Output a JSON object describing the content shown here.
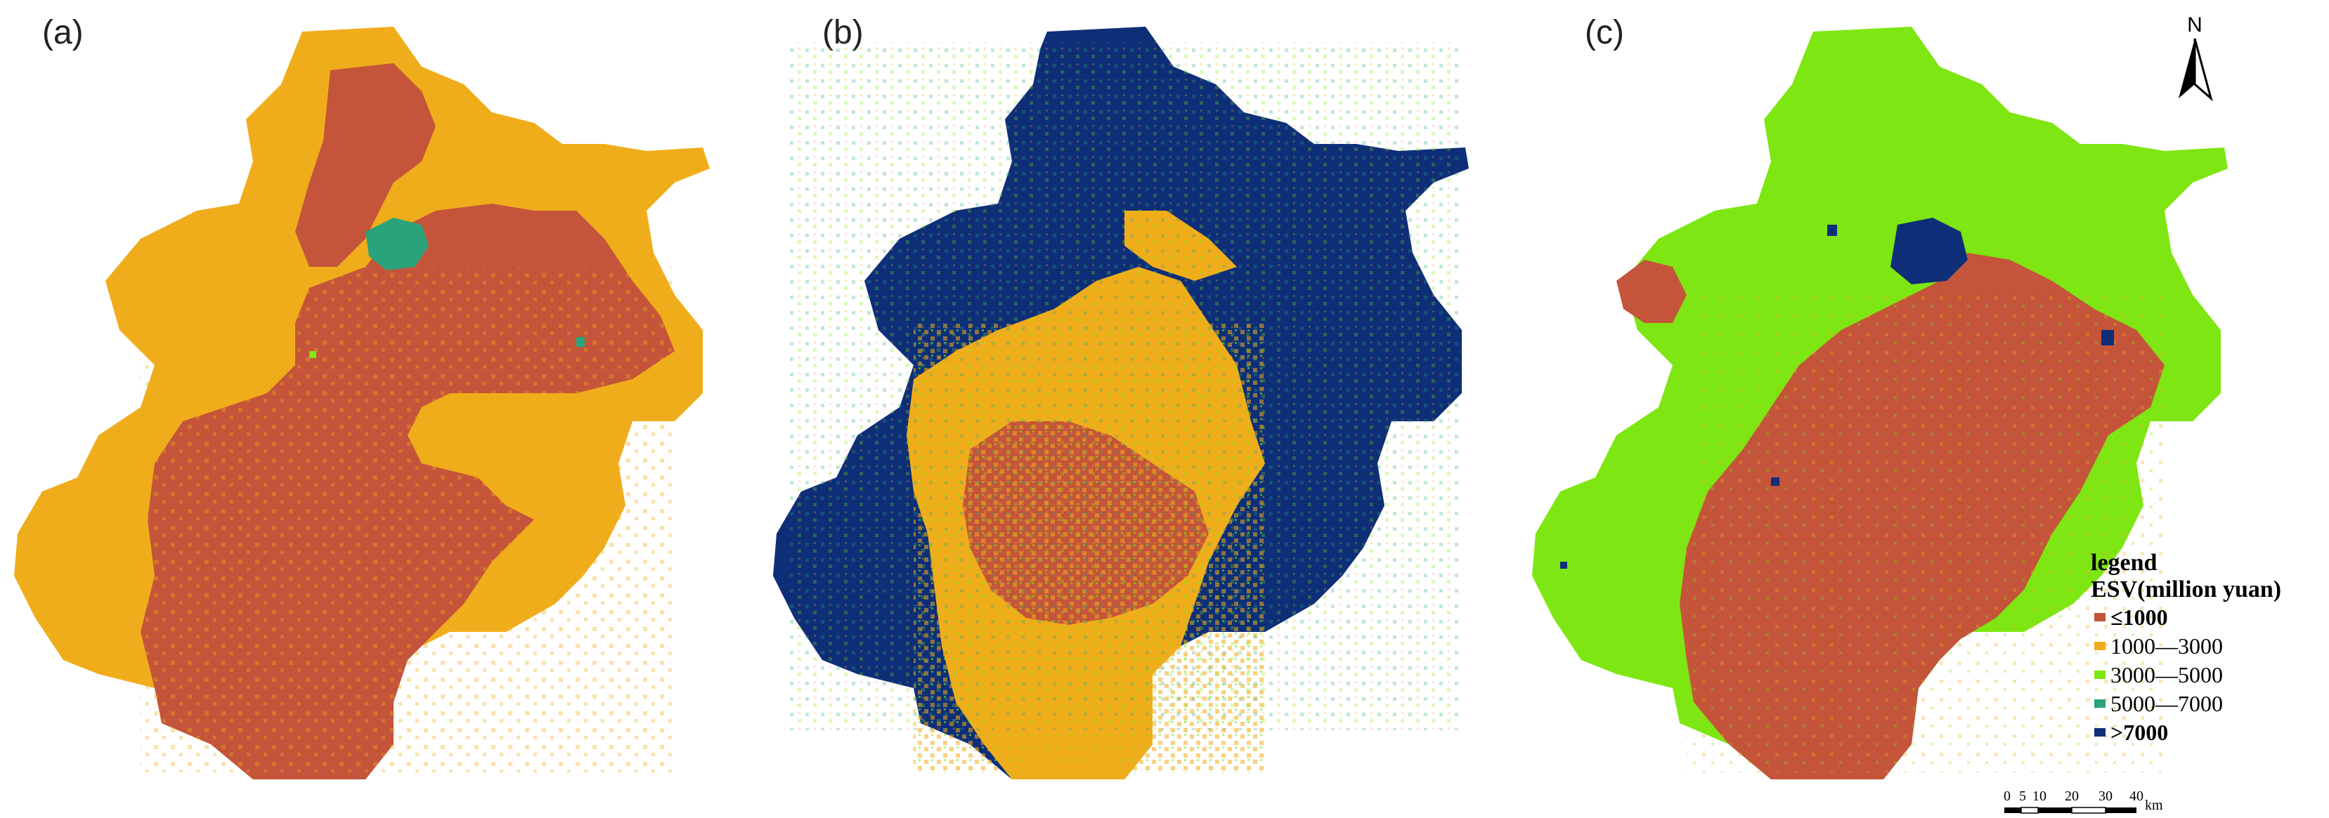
{
  "colors": {
    "le1000": "#c4553a",
    "c1000_3000": "#f0ad1b",
    "c3000_5000": "#7ee612",
    "c5000_7000": "#2aa37c",
    "gt7000": "#0e2f78"
  },
  "panels": [
    {
      "label": "(a)",
      "dominant": [
        "le1000",
        "c1000_3000"
      ],
      "accent": "c5000_7000"
    },
    {
      "label": "(b)",
      "dominant": [
        "le1000",
        "c1000_3000",
        "gt7000"
      ],
      "accent": "c5000_7000"
    },
    {
      "label": "(c)",
      "dominant": [
        "le1000",
        "c3000_5000"
      ],
      "accent": "gt7000"
    }
  ],
  "north_arrow": {
    "letter": "N",
    "icon": "north-arrow-icon"
  },
  "legend": {
    "heading": "legend",
    "title": "ESV(million yuan)",
    "items": [
      {
        "label": "≤1000",
        "color_key": "le1000"
      },
      {
        "label": "1000—3000",
        "color_key": "c1000_3000"
      },
      {
        "label": "3000—5000",
        "color_key": "c3000_5000"
      },
      {
        "label": "5000—7000",
        "color_key": "c5000_7000"
      },
      {
        "label": ">7000",
        "color_key": "gt7000"
      }
    ]
  },
  "scale_bar": {
    "ticks": [
      "0",
      "5",
      "10",
      "20",
      "30",
      "40"
    ],
    "unit": "km"
  }
}
